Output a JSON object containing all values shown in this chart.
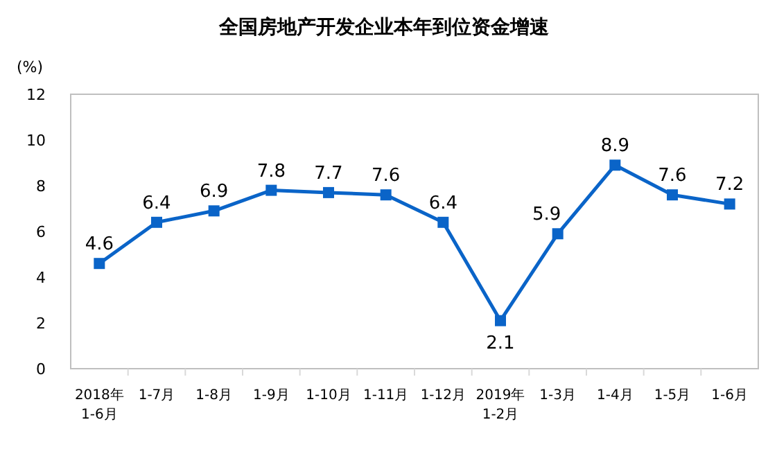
{
  "chart_data": {
    "type": "line",
    "title": "全国房地产开发企业本年到位资金增速",
    "ylabel": "(%)",
    "categories": [
      "2018年\n1-6月",
      "1-7月",
      "1-8月",
      "1-9月",
      "1-10月",
      "1-11月",
      "1-12月",
      "2019年\n1-2月",
      "1-3月",
      "1-4月",
      "1-5月",
      "1-6月"
    ],
    "values": [
      4.6,
      6.4,
      6.9,
      7.8,
      7.7,
      7.6,
      6.4,
      2.1,
      5.9,
      8.9,
      7.6,
      7.2
    ],
    "color": "#0a64c8",
    "marker": "square",
    "line_style": "solid",
    "data_labels": true,
    "ylim": [
      0,
      12
    ],
    "yticks": [
      0,
      2,
      4,
      6,
      8,
      10,
      12
    ]
  }
}
